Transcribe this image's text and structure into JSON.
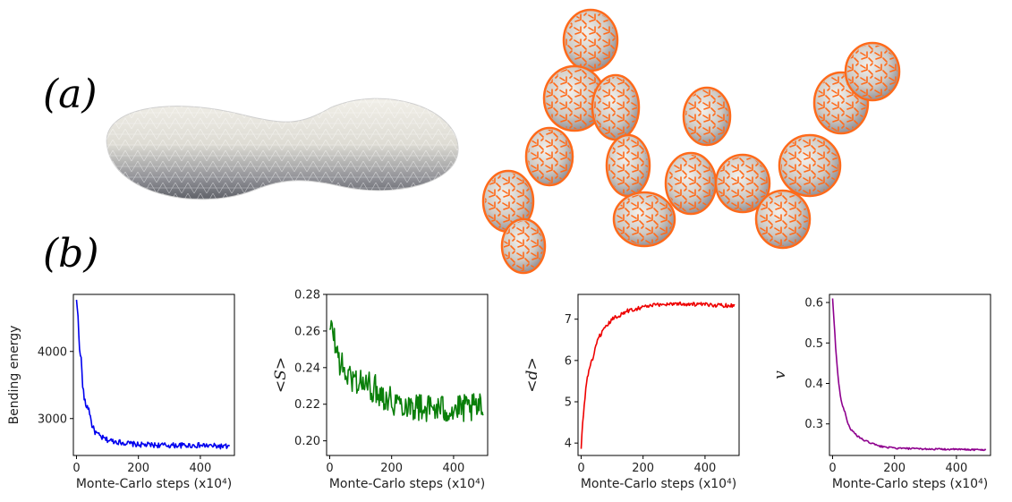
{
  "figure": {
    "label_a": "(a)",
    "label_b": "(b)"
  },
  "chart_data": [
    {
      "type": "line",
      "xlabel": "Monte-Carlo steps (x10⁴)",
      "ylabel": "Bending energy",
      "xlim": [
        -10,
        510
      ],
      "ylim": [
        2450,
        4850
      ],
      "xticks": [
        0,
        200,
        400
      ],
      "yticks": [
        3000,
        4000
      ],
      "color": "#0000ee",
      "noise": 40,
      "series": [
        {
          "x": [
            0,
            5,
            10,
            15,
            20,
            25,
            30,
            40,
            50,
            60,
            80,
            100,
            150,
            200,
            300,
            400,
            495
          ],
          "y": [
            4750,
            4550,
            4000,
            3900,
            3500,
            3300,
            3200,
            3150,
            2900,
            2800,
            2720,
            2680,
            2640,
            2610,
            2600,
            2600,
            2580
          ]
        }
      ]
    },
    {
      "type": "line",
      "xlabel": "Monte-Carlo steps (x10⁴)",
      "ylabel": "<S>",
      "xlim": [
        -10,
        510
      ],
      "ylim": [
        0.192,
        0.28
      ],
      "xticks": [
        0,
        200,
        400
      ],
      "yticks": [
        0.2,
        0.22,
        0.24,
        0.26,
        0.28
      ],
      "color": "#0a7f0a",
      "noise": 0.008,
      "series": [
        {
          "x": [
            0,
            10,
            20,
            40,
            60,
            100,
            150,
            200,
            250,
            300,
            400,
            495
          ],
          "y": [
            0.258,
            0.262,
            0.25,
            0.24,
            0.235,
            0.232,
            0.228,
            0.222,
            0.22,
            0.218,
            0.217,
            0.218
          ]
        }
      ]
    },
    {
      "type": "line",
      "xlabel": "Monte-Carlo steps (x10⁴)",
      "ylabel": "<d>",
      "xlim": [
        -10,
        510
      ],
      "ylim": [
        3.7,
        7.6
      ],
      "xticks": [
        0,
        200,
        400
      ],
      "yticks": [
        4,
        5,
        6,
        7
      ],
      "color": "#ee0000",
      "noise": 0.05,
      "series": [
        {
          "x": [
            0,
            5,
            10,
            15,
            20,
            30,
            40,
            50,
            60,
            80,
            100,
            150,
            200,
            250,
            300,
            400,
            495
          ],
          "y": [
            3.85,
            4.5,
            4.9,
            5.3,
            5.6,
            5.9,
            6.1,
            6.4,
            6.6,
            6.8,
            7.0,
            7.2,
            7.3,
            7.35,
            7.38,
            7.35,
            7.33
          ]
        }
      ]
    },
    {
      "type": "line",
      "xlabel": "Monte-Carlo steps (x10⁴)",
      "ylabel": "v",
      "xlim": [
        -10,
        510
      ],
      "ylim": [
        0.222,
        0.62
      ],
      "xticks": [
        0,
        200,
        400
      ],
      "yticks": [
        0.3,
        0.4,
        0.5,
        0.6
      ],
      "color": "#8e008e",
      "noise": 0.002,
      "series": [
        {
          "x": [
            0,
            5,
            10,
            15,
            20,
            25,
            30,
            40,
            50,
            60,
            80,
            100,
            150,
            200,
            300,
            400,
            495
          ],
          "y": [
            0.61,
            0.55,
            0.49,
            0.44,
            0.4,
            0.37,
            0.35,
            0.33,
            0.3,
            0.285,
            0.27,
            0.26,
            0.245,
            0.24,
            0.238,
            0.237,
            0.236
          ]
        }
      ]
    }
  ]
}
